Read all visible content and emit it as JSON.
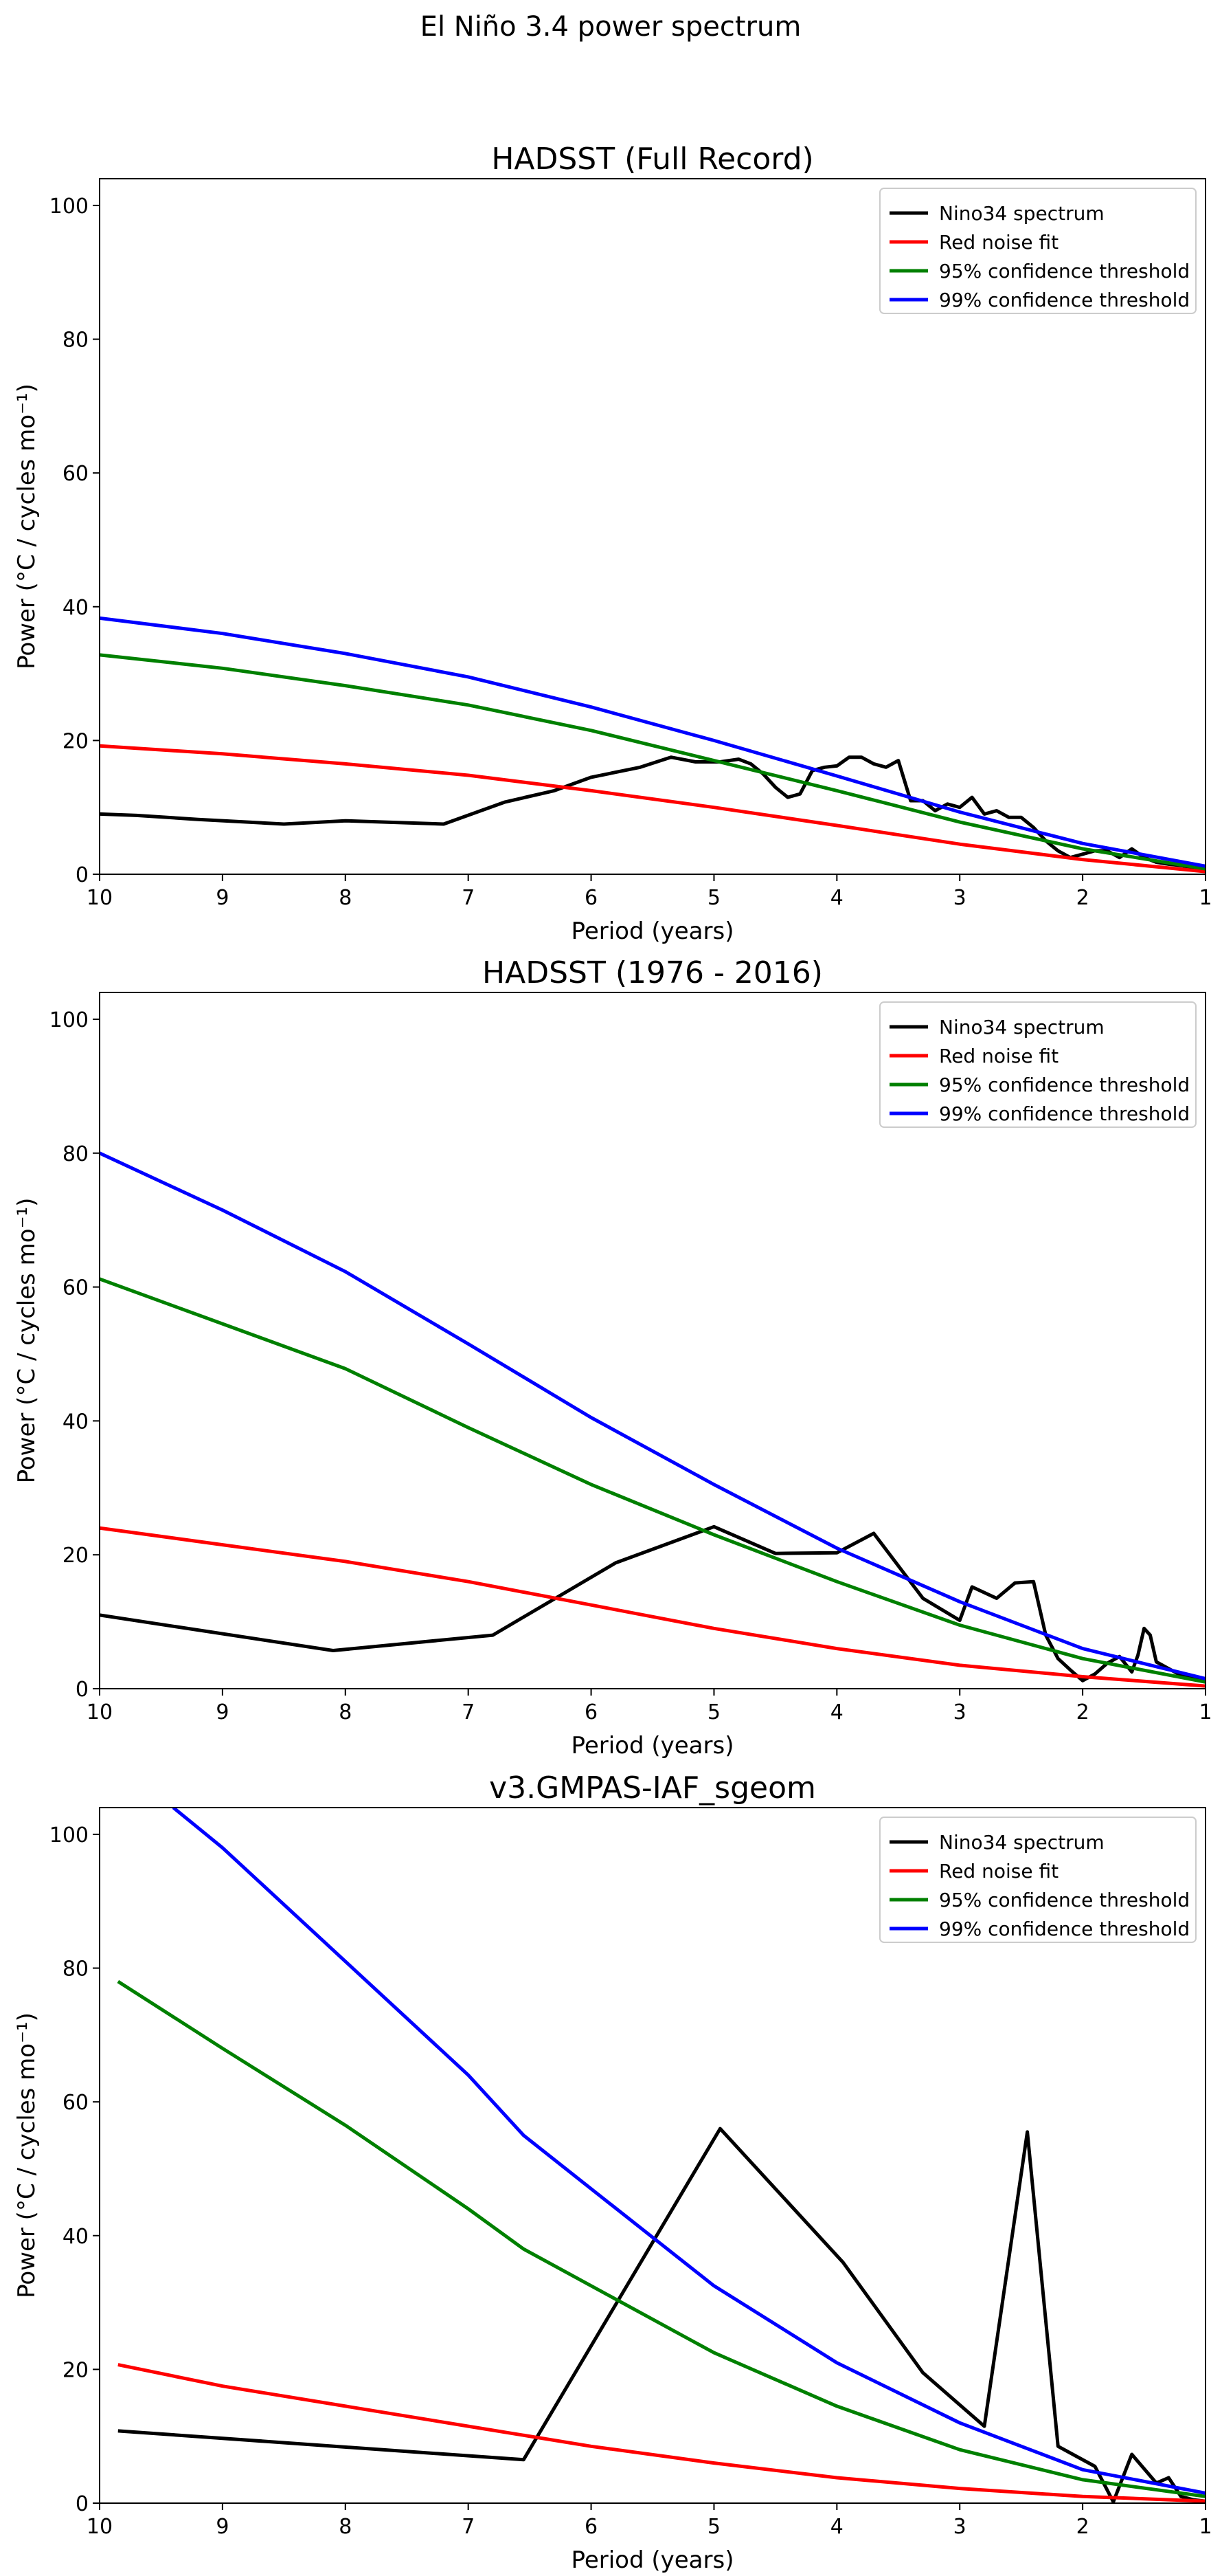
{
  "figure": {
    "suptitle": "El Niño 3.4 power spectrum"
  },
  "colors": {
    "nino34": "#000000",
    "red_noise": "#ff0000",
    "conf95": "#008000",
    "conf99": "#0000ff"
  },
  "chart_data": [
    {
      "type": "line",
      "title": "HADSST (Full Record)",
      "xlabel": "Period (years)",
      "ylabel": "Power (°C / cycles mo⁻¹)",
      "xlim": [
        10,
        1
      ],
      "ylim": [
        0,
        104
      ],
      "xticks": [
        10,
        9,
        8,
        7,
        6,
        5,
        4,
        3,
        2,
        1
      ],
      "yticks": [
        0,
        20,
        40,
        60,
        80,
        100
      ],
      "legend_position": "top-right",
      "series": [
        {
          "name": "Nino34 spectrum",
          "color": "#000000",
          "x": [
            10,
            9.7,
            9.2,
            8.5,
            8.0,
            7.2,
            6.7,
            6.3,
            6.0,
            5.6,
            5.35,
            5.15,
            4.95,
            4.8,
            4.7,
            4.6,
            4.5,
            4.4,
            4.3,
            4.2,
            4.1,
            4.0,
            3.9,
            3.8,
            3.7,
            3.6,
            3.5,
            3.4,
            3.3,
            3.2,
            3.1,
            3.0,
            2.9,
            2.8,
            2.7,
            2.6,
            2.5,
            2.4,
            2.3,
            2.2,
            2.1,
            2.0,
            1.9,
            1.8,
            1.7,
            1.6,
            1.5,
            1.4,
            1.3,
            1.2,
            1.1,
            1.0
          ],
          "y": [
            9.0,
            8.8,
            8.2,
            7.5,
            8.0,
            7.5,
            10.8,
            12.5,
            14.5,
            16.0,
            17.5,
            16.8,
            16.8,
            17.2,
            16.5,
            15.0,
            13.0,
            11.5,
            12.0,
            15.5,
            16.0,
            16.2,
            17.5,
            17.5,
            16.5,
            16.0,
            17.0,
            11.0,
            11.0,
            9.5,
            10.5,
            10.0,
            11.5,
            9.0,
            9.5,
            8.5,
            8.5,
            7.0,
            5.0,
            3.5,
            2.5,
            3.0,
            3.5,
            3.5,
            2.5,
            3.8,
            2.5,
            1.8,
            1.5,
            1.3,
            1.0,
            0.8
          ]
        },
        {
          "name": "Red noise fit",
          "color": "#ff0000",
          "x": [
            10,
            9,
            8,
            7,
            6,
            5,
            4,
            3,
            2,
            1
          ],
          "y": [
            19.2,
            18.0,
            16.5,
            14.8,
            12.5,
            10.0,
            7.3,
            4.5,
            2.2,
            0.4
          ]
        },
        {
          "name": "95% confidence threshold",
          "color": "#008000",
          "x": [
            10,
            9,
            8,
            7,
            6,
            5,
            4,
            3,
            2,
            1
          ],
          "y": [
            32.8,
            30.8,
            28.2,
            25.3,
            21.5,
            17.0,
            12.5,
            7.8,
            3.8,
            0.8
          ]
        },
        {
          "name": "99% confidence threshold",
          "color": "#0000ff",
          "x": [
            10,
            9,
            8,
            7,
            6,
            5,
            4,
            3,
            2,
            1
          ],
          "y": [
            38.3,
            36.0,
            33.0,
            29.5,
            25.0,
            20.0,
            14.7,
            9.3,
            4.6,
            1.2
          ]
        }
      ]
    },
    {
      "type": "line",
      "title": "HADSST (1976 - 2016)",
      "xlabel": "Period (years)",
      "ylabel": "Power (°C / cycles mo⁻¹)",
      "xlim": [
        10,
        1
      ],
      "ylim": [
        0,
        104
      ],
      "xticks": [
        10,
        9,
        8,
        7,
        6,
        5,
        4,
        3,
        2,
        1
      ],
      "yticks": [
        0,
        20,
        40,
        60,
        80,
        100
      ],
      "legend_position": "top-right",
      "series": [
        {
          "name": "Nino34 spectrum",
          "color": "#000000",
          "x": [
            10,
            8.1,
            6.8,
            5.8,
            5.0,
            4.5,
            4.0,
            3.7,
            3.3,
            3.0,
            2.9,
            2.7,
            2.55,
            2.4,
            2.3,
            2.2,
            2.1,
            2.0,
            1.9,
            1.8,
            1.7,
            1.6,
            1.55,
            1.5,
            1.45,
            1.4,
            1.3,
            1.2,
            1.1,
            1.0
          ],
          "y": [
            11.0,
            5.7,
            8.0,
            18.8,
            24.2,
            20.2,
            20.3,
            23.2,
            13.5,
            10.2,
            15.2,
            13.5,
            15.8,
            16.0,
            8.0,
            4.5,
            2.8,
            1.2,
            2.2,
            3.8,
            4.8,
            2.5,
            5.0,
            9.0,
            8.0,
            4.0,
            3.0,
            2.0,
            1.5,
            1.2
          ]
        },
        {
          "name": "Red noise fit",
          "color": "#ff0000",
          "x": [
            10,
            9,
            8,
            7,
            6,
            5,
            4,
            3,
            2,
            1
          ],
          "y": [
            24.0,
            21.5,
            19.0,
            16.0,
            12.5,
            9.0,
            6.0,
            3.5,
            1.8,
            0.4
          ]
        },
        {
          "name": "95% confidence threshold",
          "color": "#008000",
          "x": [
            10,
            9,
            8,
            7,
            6,
            5,
            4,
            3,
            2,
            1
          ],
          "y": [
            61.2,
            54.5,
            47.8,
            39.0,
            30.5,
            23.0,
            16.0,
            9.5,
            4.5,
            1.0
          ]
        },
        {
          "name": "99% confidence threshold",
          "color": "#0000ff",
          "x": [
            10,
            9,
            8,
            7,
            6,
            5,
            4,
            3,
            2,
            1
          ],
          "y": [
            80.0,
            71.5,
            62.3,
            51.5,
            40.5,
            30.5,
            21.0,
            13.0,
            6.0,
            1.5
          ]
        }
      ]
    },
    {
      "type": "line",
      "title": "v3.GMPAS-IAF_sgeom",
      "xlabel": "Period (years)",
      "ylabel": "Power (°C / cycles mo⁻¹)",
      "xlim": [
        10,
        1
      ],
      "ylim": [
        0,
        104
      ],
      "xticks": [
        10,
        9,
        8,
        7,
        6,
        5,
        4,
        3,
        2,
        1
      ],
      "yticks": [
        0,
        20,
        40,
        60,
        80,
        100
      ],
      "legend_position": "top-right",
      "series": [
        {
          "name": "Nino34 spectrum",
          "color": "#000000",
          "x": [
            9.85,
            6.55,
            4.95,
            3.95,
            3.3,
            2.8,
            2.45,
            2.2,
            1.9,
            1.75,
            1.6,
            1.4,
            1.3,
            1.2,
            1.1,
            1.0
          ],
          "y": [
            10.8,
            6.5,
            56.0,
            36.0,
            19.5,
            11.5,
            55.5,
            8.5,
            5.5,
            0.2,
            7.3,
            3.0,
            3.8,
            1.0,
            0.5,
            0.3
          ]
        },
        {
          "name": "Red noise fit",
          "color": "#ff0000",
          "x": [
            9.85,
            9,
            8,
            7,
            6,
            5,
            4,
            3,
            2,
            1
          ],
          "y": [
            20.7,
            17.5,
            14.5,
            11.5,
            8.5,
            6.0,
            3.8,
            2.2,
            1.0,
            0.3
          ]
        },
        {
          "name": "95% confidence threshold",
          "color": "#008000",
          "x": [
            9.85,
            9,
            8,
            7,
            6.55,
            6,
            5,
            4,
            3,
            2,
            1
          ],
          "y": [
            78.0,
            68.0,
            56.5,
            44.0,
            38.0,
            32.5,
            22.5,
            14.5,
            8.0,
            3.5,
            1.0
          ]
        },
        {
          "name": "99% confidence threshold",
          "color": "#0000ff",
          "x": [
            9.4,
            9,
            8,
            7,
            6.55,
            6,
            5,
            4,
            3,
            2,
            1
          ],
          "y": [
            104,
            98.0,
            81.0,
            64.0,
            55.0,
            47.0,
            32.5,
            21.0,
            12.0,
            5.0,
            1.5
          ]
        }
      ]
    }
  ]
}
